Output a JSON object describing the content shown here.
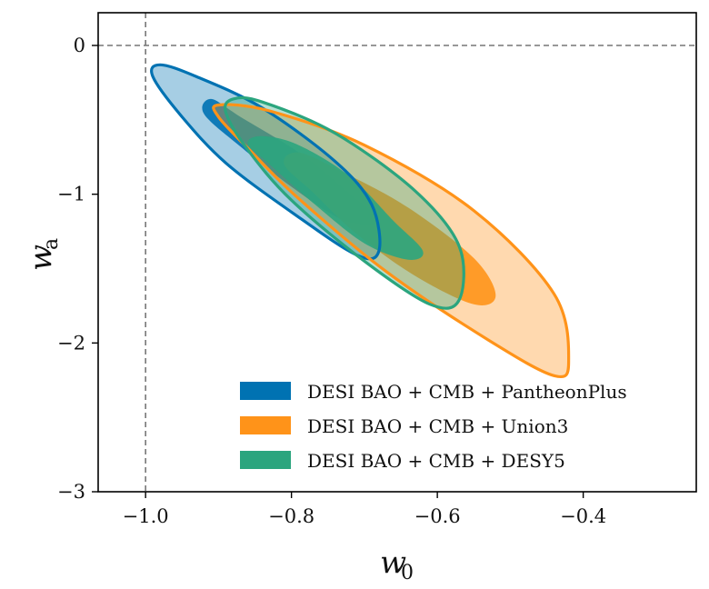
{
  "chart_data": {
    "type": "contour",
    "title": "",
    "xlabel": {
      "symbol": "w",
      "subscript": "0"
    },
    "ylabel": {
      "symbol": "w",
      "subscript": "a"
    },
    "xlim": [
      -1.065,
      -0.245
    ],
    "ylim": [
      -3.0,
      0.22
    ],
    "xticks": [
      {
        "value": -1.0,
        "label": "−1.0"
      },
      {
        "value": -0.8,
        "label": "−0.8"
      },
      {
        "value": -0.6,
        "label": "−0.6"
      },
      {
        "value": -0.4,
        "label": "−0.4"
      }
    ],
    "yticks": [
      {
        "value": 0,
        "label": "0"
      },
      {
        "value": -1,
        "label": "−1"
      },
      {
        "value": -2,
        "label": "−2"
      },
      {
        "value": -3,
        "label": "−3"
      }
    ],
    "reference_lines": {
      "w0": -1.0,
      "wa": 0.0
    },
    "legend_position": "lower-right",
    "series": [
      {
        "name": "DESI BAO + CMB + PantheonPlus",
        "color": "#0072B2",
        "inner": [
          [
            -0.91,
            -0.36
          ],
          [
            -0.87,
            -0.48
          ],
          [
            -0.79,
            -0.72
          ],
          [
            -0.72,
            -1.0
          ],
          [
            -0.68,
            -1.18
          ],
          [
            -0.73,
            -1.17
          ],
          [
            -0.8,
            -0.95
          ],
          [
            -0.87,
            -0.68
          ],
          [
            -0.92,
            -0.46
          ]
        ],
        "outer": [
          [
            -0.98,
            -0.13
          ],
          [
            -0.93,
            -0.21
          ],
          [
            -0.84,
            -0.42
          ],
          [
            -0.74,
            -0.78
          ],
          [
            -0.69,
            -1.07
          ],
          [
            -0.68,
            -1.38
          ],
          [
            -0.71,
            -1.41
          ],
          [
            -0.8,
            -1.12
          ],
          [
            -0.89,
            -0.79
          ],
          [
            -0.95,
            -0.48
          ],
          [
            -0.99,
            -0.21
          ]
        ]
      },
      {
        "name": "DESI BAO + CMB + Union3",
        "color": "#FF9319",
        "inner": [
          [
            -0.79,
            -0.72
          ],
          [
            -0.73,
            -0.85
          ],
          [
            -0.64,
            -1.09
          ],
          [
            -0.55,
            -1.43
          ],
          [
            -0.52,
            -1.68
          ],
          [
            -0.55,
            -1.74
          ],
          [
            -0.63,
            -1.55
          ],
          [
            -0.71,
            -1.27
          ],
          [
            -0.77,
            -0.99
          ],
          [
            -0.81,
            -0.8
          ]
        ],
        "outer": [
          [
            -0.9,
            -0.4
          ],
          [
            -0.83,
            -0.44
          ],
          [
            -0.7,
            -0.67
          ],
          [
            -0.55,
            -1.11
          ],
          [
            -0.44,
            -1.67
          ],
          [
            -0.42,
            -2.12
          ],
          [
            -0.44,
            -2.22
          ],
          [
            -0.53,
            -1.98
          ],
          [
            -0.67,
            -1.52
          ],
          [
            -0.79,
            -1.03
          ],
          [
            -0.86,
            -0.69
          ],
          [
            -0.9,
            -0.48
          ]
        ]
      },
      {
        "name": "DESI BAO + CMB + DESY5",
        "color": "#2BA57E",
        "inner": [
          [
            -0.84,
            -0.61
          ],
          [
            -0.79,
            -0.67
          ],
          [
            -0.72,
            -0.88
          ],
          [
            -0.66,
            -1.18
          ],
          [
            -0.62,
            -1.38
          ],
          [
            -0.64,
            -1.44
          ],
          [
            -0.7,
            -1.33
          ],
          [
            -0.77,
            -1.06
          ],
          [
            -0.83,
            -0.8
          ],
          [
            -0.86,
            -0.66
          ]
        ],
        "outer": [
          [
            -0.88,
            -0.36
          ],
          [
            -0.84,
            -0.38
          ],
          [
            -0.74,
            -0.59
          ],
          [
            -0.63,
            -0.98
          ],
          [
            -0.57,
            -1.35
          ],
          [
            -0.57,
            -1.71
          ],
          [
            -0.61,
            -1.74
          ],
          [
            -0.7,
            -1.45
          ],
          [
            -0.8,
            -1.04
          ],
          [
            -0.86,
            -0.7
          ],
          [
            -0.89,
            -0.45
          ]
        ]
      }
    ]
  }
}
